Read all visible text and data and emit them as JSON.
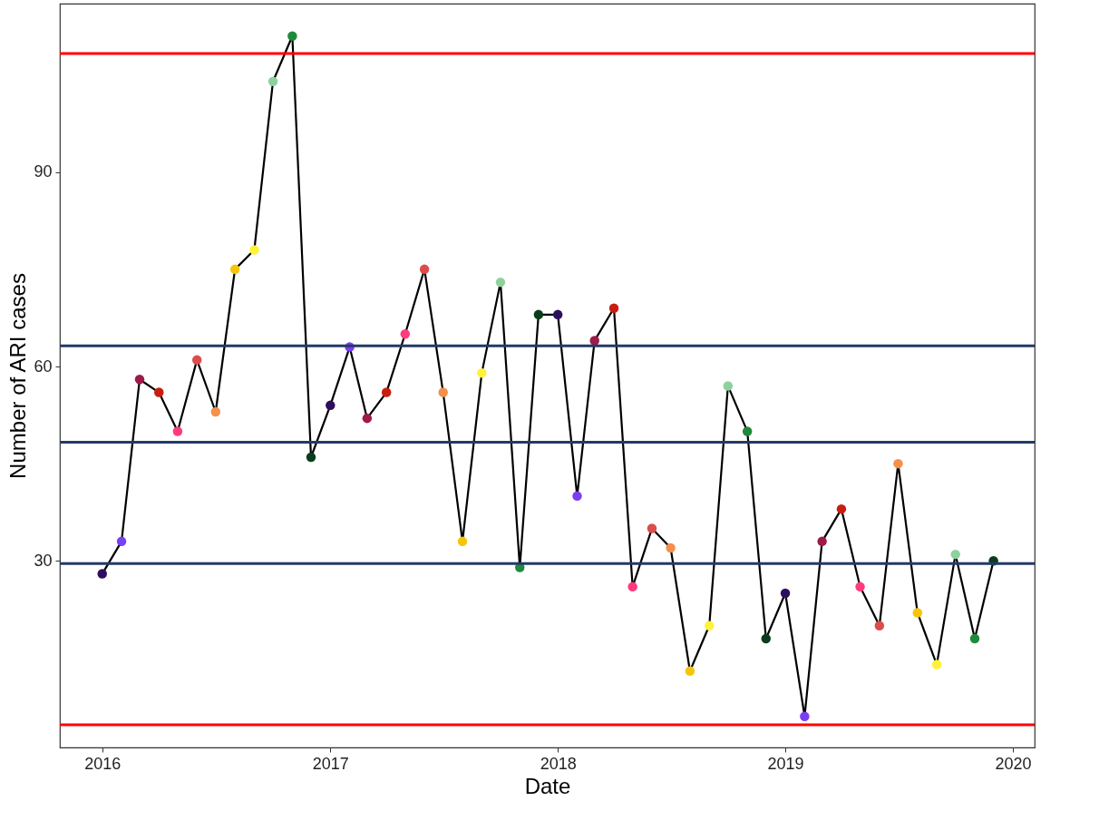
{
  "chart_data": {
    "type": "line",
    "xlabel": "Date",
    "ylabel": "Number of ARI cases",
    "x": [
      "2016-01",
      "2016-02",
      "2016-03",
      "2016-04",
      "2016-05",
      "2016-06",
      "2016-07",
      "2016-08",
      "2016-09",
      "2016-10",
      "2016-11",
      "2016-12",
      "2017-01",
      "2017-02",
      "2017-03",
      "2017-04",
      "2017-05",
      "2017-06",
      "2017-07",
      "2017-08",
      "2017-09",
      "2017-10",
      "2017-11",
      "2017-12",
      "2018-01",
      "2018-02",
      "2018-03",
      "2018-04",
      "2018-05",
      "2018-06",
      "2018-07",
      "2018-08",
      "2018-09",
      "2018-10",
      "2018-11",
      "2018-12",
      "2019-01",
      "2019-02",
      "2019-03",
      "2019-04",
      "2019-05",
      "2019-06",
      "2019-07",
      "2019-08",
      "2019-09",
      "2019-10",
      "2019-11",
      "2019-12"
    ],
    "series": [
      {
        "color": "#000000",
        "marker": "circle",
        "line_style": "solid",
        "values": [
          28,
          33,
          58,
          56,
          50,
          61,
          53,
          75,
          78,
          104,
          111,
          46,
          54,
          63,
          52,
          56,
          65,
          75,
          56,
          33,
          59,
          73,
          29,
          68,
          68,
          40,
          64,
          69,
          26,
          35,
          32,
          13,
          20,
          57,
          50,
          18,
          25,
          6,
          33,
          38,
          26,
          20,
          45,
          22,
          14,
          31,
          18,
          30
        ],
        "colors": [
          "#2d0f5e",
          "#7b3ff2",
          "#9e1a4a",
          "#c81d11",
          "#ff3b7f",
          "#dc4c4c",
          "#f4904a",
          "#f5c50a",
          "#fff23a",
          "#8fd19e",
          "#1f8a3c",
          "#0b3d1c",
          "#2d0f5e",
          "#7b3ff2",
          "#9e1a4a",
          "#c81d11",
          "#ff3b7f",
          "#dc4c4c",
          "#f4904a",
          "#f5c50a",
          "#fff23a",
          "#8fd19e",
          "#1f8a3c",
          "#0b3d1c",
          "#2d0f5e",
          "#7b3ff2",
          "#9e1a4a",
          "#c81d11",
          "#ff3b7f",
          "#dc4c4c",
          "#f4904a",
          "#f5c50a",
          "#fff23a",
          "#8fd19e",
          "#1f8a3c",
          "#0b3d1c",
          "#2d0f5e",
          "#7b3ff2",
          "#9e1a4a",
          "#c81d11",
          "#ff3b7f",
          "#dc4c4c",
          "#f4904a",
          "#f5c50a",
          "#fff23a",
          "#8fd19e",
          "#1f8a3c",
          "#0b3d1c"
        ]
      }
    ],
    "xlim": [
      "2015-10-25",
      "2020-02-05"
    ],
    "xticks": [
      "2016",
      "2017",
      "2018",
      "2019",
      "2020"
    ],
    "ylim": [
      1.2,
      116
    ],
    "yticks": [
      30,
      60,
      90
    ],
    "ref_lines": [
      {
        "axis": "y",
        "value": 108.3,
        "color": "#ff0000"
      },
      {
        "axis": "y",
        "value": 4.7,
        "color": "#ff0000"
      },
      {
        "axis": "y",
        "value": 63.2,
        "color": "#233a66"
      },
      {
        "axis": "y",
        "value": 48.3,
        "color": "#233a66"
      },
      {
        "axis": "y",
        "value": 29.6,
        "color": "#233a66"
      }
    ]
  }
}
